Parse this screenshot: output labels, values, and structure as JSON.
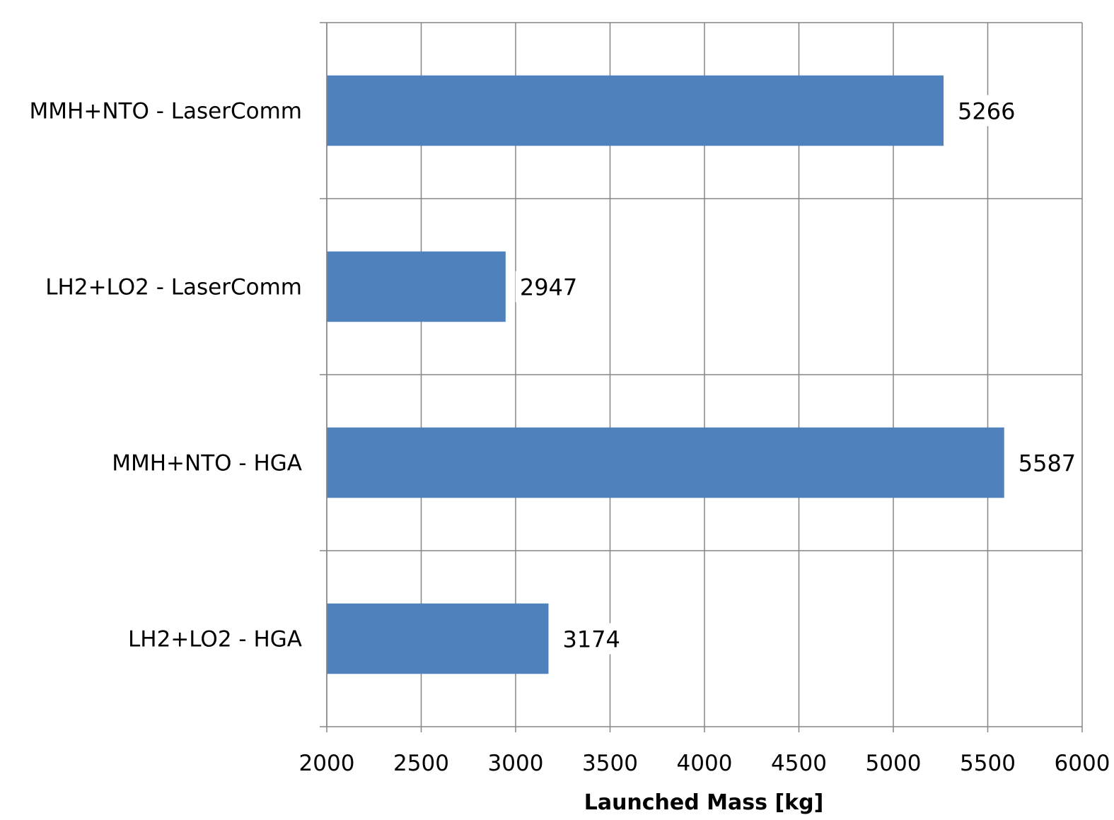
{
  "chart_data": {
    "type": "bar",
    "orientation": "horizontal",
    "title": "",
    "xlabel": "Launched Mass [kg]",
    "ylabel": "",
    "categories": [
      "MMH+NTO - LaserComm",
      "LH2+LO2 - LaserComm",
      "MMH+NTO - HGA",
      "LH2+LO2 - HGA"
    ],
    "values": [
      5266,
      2947,
      5587,
      3174
    ],
    "data_labels": [
      "5266",
      "2947",
      "5587",
      "3174"
    ],
    "xlim": [
      2000,
      6000
    ],
    "xticks": [
      2000,
      2500,
      3000,
      3500,
      4000,
      4500,
      5000,
      5500,
      6000
    ],
    "xtick_labels": [
      "2000",
      "2500",
      "3000",
      "3500",
      "4000",
      "4500",
      "5000",
      "5500",
      "6000"
    ],
    "grid": true,
    "legend": "none",
    "bar_color": "#4F81BD",
    "grid_color": "#868686"
  }
}
